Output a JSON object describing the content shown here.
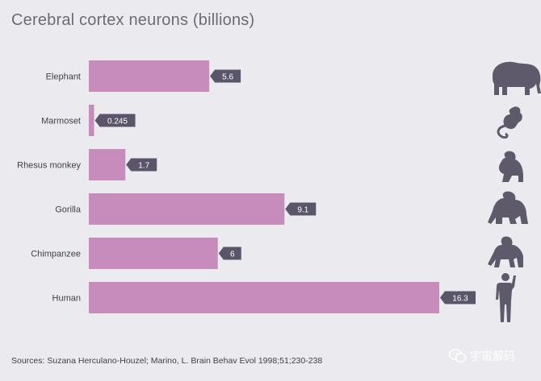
{
  "chart_data": {
    "type": "bar",
    "orientation": "horizontal",
    "title": "Cerebral cortex neurons (billions)",
    "categories": [
      "Elephant",
      "Marmoset",
      "Rhesus monkey",
      "Gorilla",
      "Chimpanzee",
      "Human"
    ],
    "values": [
      5.6,
      0.245,
      1.7,
      9.1,
      6,
      16.3
    ],
    "value_labels": [
      "5.6",
      "0.245",
      "1.7",
      "9.1",
      "6",
      "16.3"
    ],
    "icons": [
      "elephant-icon",
      "marmoset-icon",
      "monkey-icon",
      "gorilla-icon",
      "chimpanzee-icon",
      "human-icon"
    ],
    "xlim": [
      0,
      16.3
    ],
    "grid": false,
    "legend": "none",
    "colors": {
      "bar": "#c78cbb",
      "label_bg": "#5a5568",
      "silhouette": "#5e5a6c",
      "background": "#ebebef"
    }
  },
  "source": "Sources: Suzana Herculano-Houzel; Marino, L. Brain Behav Evol 1998;51;230-238",
  "watermark": "宇宙解码"
}
